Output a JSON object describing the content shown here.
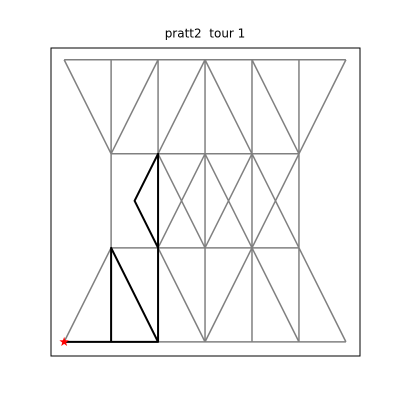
{
  "chart_data": {
    "type": "graph",
    "title": "pratt2  tour 1",
    "xlim": [
      -0.28,
      6.3
    ],
    "ylim": [
      -0.3,
      6.25
    ],
    "edge_color": "gray",
    "tour_color": "black",
    "start_color": "red",
    "edges": [
      [
        0,
        6,
        6,
        6
      ],
      [
        1,
        4,
        1,
        6
      ],
      [
        2,
        4,
        2,
        6
      ],
      [
        3,
        4,
        3,
        6
      ],
      [
        4,
        4,
        4,
        6
      ],
      [
        5,
        4,
        5,
        6
      ],
      [
        0,
        6,
        1,
        4
      ],
      [
        1,
        4,
        2,
        6
      ],
      [
        2,
        4,
        3,
        6
      ],
      [
        3,
        6,
        4,
        4
      ],
      [
        4,
        6,
        5,
        4
      ],
      [
        5,
        4,
        6,
        6
      ],
      [
        1,
        4,
        5,
        4
      ],
      [
        1,
        2,
        1,
        4
      ],
      [
        2,
        2,
        2,
        4
      ],
      [
        3,
        2,
        3,
        4
      ],
      [
        4,
        2,
        4,
        4
      ],
      [
        5,
        2,
        5,
        4
      ],
      [
        2,
        4,
        3,
        2
      ],
      [
        2,
        2,
        3,
        4
      ],
      [
        3,
        4,
        4,
        2
      ],
      [
        3,
        2,
        4,
        4
      ],
      [
        4,
        4,
        5,
        2
      ],
      [
        4,
        2,
        5,
        4
      ],
      [
        1,
        2,
        5,
        2
      ],
      [
        0,
        0,
        6,
        0
      ],
      [
        1,
        0,
        1,
        2
      ],
      [
        2,
        0,
        2,
        2
      ],
      [
        3,
        0,
        3,
        2
      ],
      [
        4,
        0,
        4,
        2
      ],
      [
        5,
        0,
        5,
        2
      ],
      [
        0,
        0,
        1,
        2
      ],
      [
        1,
        2,
        2,
        0
      ],
      [
        2,
        2,
        3,
        0
      ],
      [
        3,
        0,
        4,
        2
      ],
      [
        4,
        2,
        5,
        0
      ],
      [
        5,
        2,
        6,
        0
      ]
    ],
    "tour": {
      "x": [
        0,
        1,
        1,
        2,
        2,
        2,
        1.5,
        2,
        2,
        1,
        0
      ],
      "y": [
        0,
        0,
        2,
        0,
        2,
        4,
        3,
        2,
        0,
        0,
        0
      ]
    }
  }
}
